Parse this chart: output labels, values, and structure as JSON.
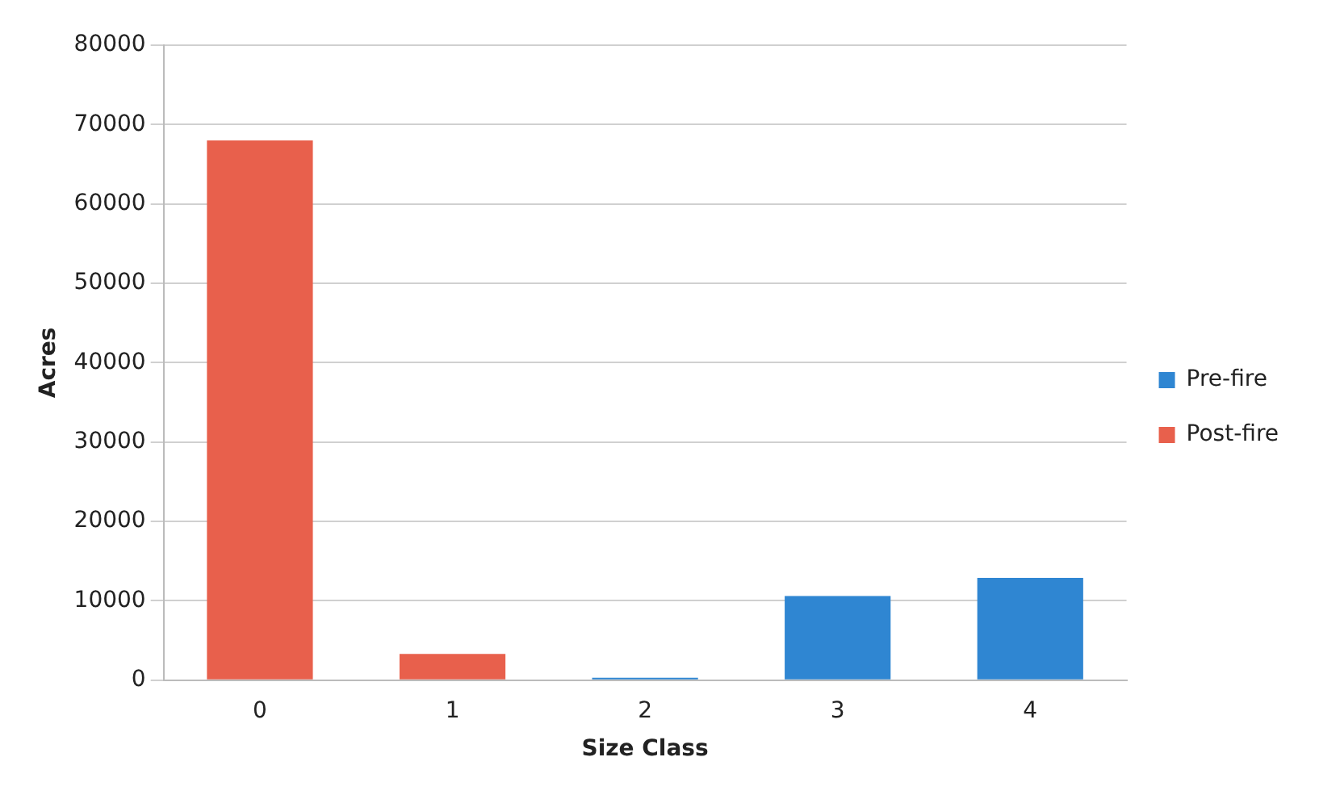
{
  "chart_data": {
    "type": "bar",
    "xlabel": "Size Class",
    "ylabel": "Acres",
    "categories": [
      "0",
      "1",
      "2",
      "3",
      "4"
    ],
    "series": [
      {
        "name": "Pre-fire",
        "color": "#2f86d2",
        "values": [
          null,
          null,
          300,
          10600,
          12900
        ]
      },
      {
        "name": "Post-fire",
        "color": "#e8604c",
        "values": [
          68000,
          3300,
          null,
          null,
          null
        ]
      }
    ],
    "ylim": [
      0,
      80000
    ],
    "yticks": [
      0,
      10000,
      20000,
      30000,
      40000,
      50000,
      60000,
      70000,
      80000
    ],
    "grid": "y",
    "legend": "right"
  }
}
